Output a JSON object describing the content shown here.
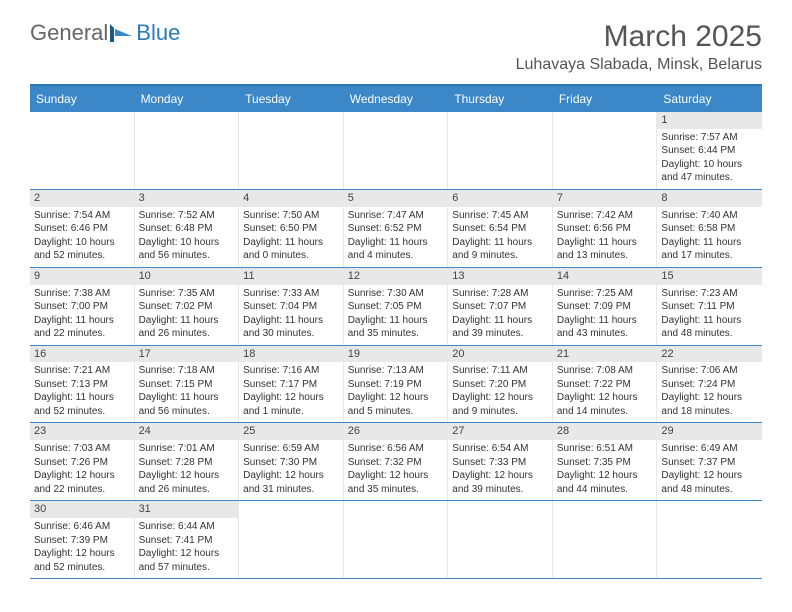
{
  "logo": {
    "gray": "General",
    "blue": "Blue"
  },
  "header": {
    "title": "March 2025",
    "location": "Luhavaya Slabada, Minsk, Belarus"
  },
  "colors": {
    "accent": "#3b87c8",
    "header_bg": "#e8e8e8",
    "text": "#333333"
  },
  "weekdays": [
    "Sunday",
    "Monday",
    "Tuesday",
    "Wednesday",
    "Thursday",
    "Friday",
    "Saturday"
  ],
  "weeks": [
    [
      null,
      null,
      null,
      null,
      null,
      null,
      {
        "n": "1",
        "sunrise": "Sunrise: 7:57 AM",
        "sunset": "Sunset: 6:44 PM",
        "daylight": "Daylight: 10 hours and 47 minutes."
      }
    ],
    [
      {
        "n": "2",
        "sunrise": "Sunrise: 7:54 AM",
        "sunset": "Sunset: 6:46 PM",
        "daylight": "Daylight: 10 hours and 52 minutes."
      },
      {
        "n": "3",
        "sunrise": "Sunrise: 7:52 AM",
        "sunset": "Sunset: 6:48 PM",
        "daylight": "Daylight: 10 hours and 56 minutes."
      },
      {
        "n": "4",
        "sunrise": "Sunrise: 7:50 AM",
        "sunset": "Sunset: 6:50 PM",
        "daylight": "Daylight: 11 hours and 0 minutes."
      },
      {
        "n": "5",
        "sunrise": "Sunrise: 7:47 AM",
        "sunset": "Sunset: 6:52 PM",
        "daylight": "Daylight: 11 hours and 4 minutes."
      },
      {
        "n": "6",
        "sunrise": "Sunrise: 7:45 AM",
        "sunset": "Sunset: 6:54 PM",
        "daylight": "Daylight: 11 hours and 9 minutes."
      },
      {
        "n": "7",
        "sunrise": "Sunrise: 7:42 AM",
        "sunset": "Sunset: 6:56 PM",
        "daylight": "Daylight: 11 hours and 13 minutes."
      },
      {
        "n": "8",
        "sunrise": "Sunrise: 7:40 AM",
        "sunset": "Sunset: 6:58 PM",
        "daylight": "Daylight: 11 hours and 17 minutes."
      }
    ],
    [
      {
        "n": "9",
        "sunrise": "Sunrise: 7:38 AM",
        "sunset": "Sunset: 7:00 PM",
        "daylight": "Daylight: 11 hours and 22 minutes."
      },
      {
        "n": "10",
        "sunrise": "Sunrise: 7:35 AM",
        "sunset": "Sunset: 7:02 PM",
        "daylight": "Daylight: 11 hours and 26 minutes."
      },
      {
        "n": "11",
        "sunrise": "Sunrise: 7:33 AM",
        "sunset": "Sunset: 7:04 PM",
        "daylight": "Daylight: 11 hours and 30 minutes."
      },
      {
        "n": "12",
        "sunrise": "Sunrise: 7:30 AM",
        "sunset": "Sunset: 7:05 PM",
        "daylight": "Daylight: 11 hours and 35 minutes."
      },
      {
        "n": "13",
        "sunrise": "Sunrise: 7:28 AM",
        "sunset": "Sunset: 7:07 PM",
        "daylight": "Daylight: 11 hours and 39 minutes."
      },
      {
        "n": "14",
        "sunrise": "Sunrise: 7:25 AM",
        "sunset": "Sunset: 7:09 PM",
        "daylight": "Daylight: 11 hours and 43 minutes."
      },
      {
        "n": "15",
        "sunrise": "Sunrise: 7:23 AM",
        "sunset": "Sunset: 7:11 PM",
        "daylight": "Daylight: 11 hours and 48 minutes."
      }
    ],
    [
      {
        "n": "16",
        "sunrise": "Sunrise: 7:21 AM",
        "sunset": "Sunset: 7:13 PM",
        "daylight": "Daylight: 11 hours and 52 minutes."
      },
      {
        "n": "17",
        "sunrise": "Sunrise: 7:18 AM",
        "sunset": "Sunset: 7:15 PM",
        "daylight": "Daylight: 11 hours and 56 minutes."
      },
      {
        "n": "18",
        "sunrise": "Sunrise: 7:16 AM",
        "sunset": "Sunset: 7:17 PM",
        "daylight": "Daylight: 12 hours and 1 minute."
      },
      {
        "n": "19",
        "sunrise": "Sunrise: 7:13 AM",
        "sunset": "Sunset: 7:19 PM",
        "daylight": "Daylight: 12 hours and 5 minutes."
      },
      {
        "n": "20",
        "sunrise": "Sunrise: 7:11 AM",
        "sunset": "Sunset: 7:20 PM",
        "daylight": "Daylight: 12 hours and 9 minutes."
      },
      {
        "n": "21",
        "sunrise": "Sunrise: 7:08 AM",
        "sunset": "Sunset: 7:22 PM",
        "daylight": "Daylight: 12 hours and 14 minutes."
      },
      {
        "n": "22",
        "sunrise": "Sunrise: 7:06 AM",
        "sunset": "Sunset: 7:24 PM",
        "daylight": "Daylight: 12 hours and 18 minutes."
      }
    ],
    [
      {
        "n": "23",
        "sunrise": "Sunrise: 7:03 AM",
        "sunset": "Sunset: 7:26 PM",
        "daylight": "Daylight: 12 hours and 22 minutes."
      },
      {
        "n": "24",
        "sunrise": "Sunrise: 7:01 AM",
        "sunset": "Sunset: 7:28 PM",
        "daylight": "Daylight: 12 hours and 26 minutes."
      },
      {
        "n": "25",
        "sunrise": "Sunrise: 6:59 AM",
        "sunset": "Sunset: 7:30 PM",
        "daylight": "Daylight: 12 hours and 31 minutes."
      },
      {
        "n": "26",
        "sunrise": "Sunrise: 6:56 AM",
        "sunset": "Sunset: 7:32 PM",
        "daylight": "Daylight: 12 hours and 35 minutes."
      },
      {
        "n": "27",
        "sunrise": "Sunrise: 6:54 AM",
        "sunset": "Sunset: 7:33 PM",
        "daylight": "Daylight: 12 hours and 39 minutes."
      },
      {
        "n": "28",
        "sunrise": "Sunrise: 6:51 AM",
        "sunset": "Sunset: 7:35 PM",
        "daylight": "Daylight: 12 hours and 44 minutes."
      },
      {
        "n": "29",
        "sunrise": "Sunrise: 6:49 AM",
        "sunset": "Sunset: 7:37 PM",
        "daylight": "Daylight: 12 hours and 48 minutes."
      }
    ],
    [
      {
        "n": "30",
        "sunrise": "Sunrise: 6:46 AM",
        "sunset": "Sunset: 7:39 PM",
        "daylight": "Daylight: 12 hours and 52 minutes."
      },
      {
        "n": "31",
        "sunrise": "Sunrise: 6:44 AM",
        "sunset": "Sunset: 7:41 PM",
        "daylight": "Daylight: 12 hours and 57 minutes."
      },
      null,
      null,
      null,
      null,
      null
    ]
  ]
}
